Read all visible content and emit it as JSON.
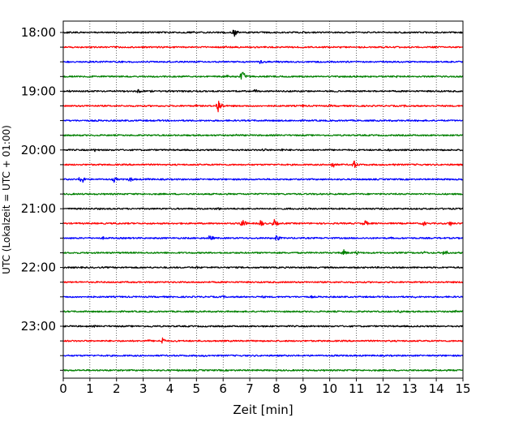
{
  "chart_data": {
    "type": "line",
    "xlabel": "Zeit  [min]",
    "ylabel": "UTC (Lokalzeit = UTC + 01:00)",
    "xlim": [
      0,
      15
    ],
    "x_ticks": [
      0,
      1,
      2,
      3,
      4,
      5,
      6,
      7,
      8,
      9,
      10,
      11,
      12,
      13,
      14,
      15
    ],
    "y_tick_labels": [
      "18:00",
      "19:00",
      "20:00",
      "21:00",
      "22:00",
      "23:00"
    ],
    "trace_interval_minutes": 15,
    "start_time": "18:00",
    "grid": "vertical dotted",
    "colors": [
      "#000000",
      "#ff0000",
      "#0000ff",
      "#008000"
    ],
    "traces": [
      {
        "start": "18:00",
        "color": "#000000",
        "events": [
          {
            "x": 6.4,
            "amp": 6
          },
          {
            "x": 4.9,
            "amp": 1.5
          },
          {
            "x": 6.0,
            "amp": 1.5
          },
          {
            "x": 9.0,
            "amp": 1.5
          }
        ]
      },
      {
        "start": "18:15",
        "color": "#ff0000",
        "events": [
          {
            "x": 1.1,
            "amp": 2
          },
          {
            "x": 6.1,
            "amp": 1.5
          }
        ]
      },
      {
        "start": "18:30",
        "color": "#0000ff",
        "events": [
          {
            "x": 7.4,
            "amp": 3
          },
          {
            "x": 2.2,
            "amp": 1.5
          }
        ]
      },
      {
        "start": "18:45",
        "color": "#008000",
        "events": [
          {
            "x": 6.7,
            "amp": 9
          },
          {
            "x": 6.15,
            "amp": 2
          },
          {
            "x": 7.0,
            "amp": 2
          },
          {
            "x": 10.3,
            "amp": 1.5
          },
          {
            "x": 12.5,
            "amp": 1.5
          }
        ]
      },
      {
        "start": "19:00",
        "color": "#000000",
        "events": [
          {
            "x": 0.2,
            "amp": 2
          },
          {
            "x": 2.8,
            "amp": 3
          },
          {
            "x": 7.2,
            "amp": 3
          },
          {
            "x": 3.3,
            "amp": 1.5
          },
          {
            "x": 5.6,
            "amp": 1.5
          }
        ]
      },
      {
        "start": "19:15",
        "color": "#ff0000",
        "events": [
          {
            "x": 5.8,
            "amp": 11
          },
          {
            "x": 5.0,
            "amp": 2
          },
          {
            "x": 9.0,
            "amp": 2
          },
          {
            "x": 10.0,
            "amp": 2
          },
          {
            "x": 12.8,
            "amp": 1.5
          }
        ]
      },
      {
        "start": "19:30",
        "color": "#0000ff",
        "events": [
          {
            "x": 1.3,
            "amp": 1.5
          },
          {
            "x": 7.0,
            "amp": 1.5
          }
        ]
      },
      {
        "start": "19:45",
        "color": "#008000",
        "events": [
          {
            "x": 6.5,
            "amp": 2
          },
          {
            "x": 8.0,
            "amp": 1.5
          }
        ]
      },
      {
        "start": "20:00",
        "color": "#000000",
        "events": [
          {
            "x": 1.2,
            "amp": 3
          },
          {
            "x": 7.5,
            "amp": 3
          },
          {
            "x": 8.2,
            "amp": 2
          },
          {
            "x": 12.2,
            "amp": 2
          },
          {
            "x": 14.2,
            "amp": 1.5
          }
        ]
      },
      {
        "start": "20:15",
        "color": "#ff0000",
        "events": [
          {
            "x": 10.1,
            "amp": 5
          },
          {
            "x": 10.9,
            "amp": 6
          },
          {
            "x": 3.0,
            "amp": 1.5
          },
          {
            "x": 12.4,
            "amp": 2
          },
          {
            "x": 13.3,
            "amp": 1.5
          }
        ]
      },
      {
        "start": "20:30",
        "color": "#0000ff",
        "events": [
          {
            "x": 0.65,
            "amp": 8
          },
          {
            "x": 1.9,
            "amp": 4
          },
          {
            "x": 2.5,
            "amp": 4
          },
          {
            "x": 3.2,
            "amp": 2
          }
        ]
      },
      {
        "start": "20:45",
        "color": "#008000",
        "events": [
          {
            "x": 3.0,
            "amp": 1.5
          },
          {
            "x": 9.5,
            "amp": 1.5
          }
        ]
      },
      {
        "start": "21:00",
        "color": "#000000",
        "events": [
          {
            "x": 5.8,
            "amp": 2.5
          },
          {
            "x": 1.3,
            "amp": 1.5
          },
          {
            "x": 8.5,
            "amp": 1.5
          }
        ]
      },
      {
        "start": "21:15",
        "color": "#ff0000",
        "events": [
          {
            "x": 6.7,
            "amp": 8
          },
          {
            "x": 7.4,
            "amp": 5
          },
          {
            "x": 7.9,
            "amp": 6
          },
          {
            "x": 11.3,
            "amp": 5
          },
          {
            "x": 13.5,
            "amp": 4
          },
          {
            "x": 14.5,
            "amp": 4
          },
          {
            "x": 2.0,
            "amp": 2
          }
        ]
      },
      {
        "start": "21:30",
        "color": "#0000ff",
        "events": [
          {
            "x": 5.5,
            "amp": 5
          },
          {
            "x": 8.0,
            "amp": 5
          },
          {
            "x": 1.5,
            "amp": 2
          },
          {
            "x": 12.3,
            "amp": 1.5
          }
        ]
      },
      {
        "start": "21:45",
        "color": "#008000",
        "events": [
          {
            "x": 10.5,
            "amp": 5
          },
          {
            "x": 11.0,
            "amp": 3
          },
          {
            "x": 13.5,
            "amp": 3
          },
          {
            "x": 14.3,
            "amp": 5
          }
        ]
      },
      {
        "start": "22:00",
        "color": "#000000",
        "events": [
          {
            "x": 5.0,
            "amp": 2
          },
          {
            "x": 1.2,
            "amp": 1.5
          }
        ]
      },
      {
        "start": "22:15",
        "color": "#ff0000",
        "events": [
          {
            "x": 4.0,
            "amp": 1
          }
        ]
      },
      {
        "start": "22:30",
        "color": "#0000ff",
        "events": [
          {
            "x": 6.0,
            "amp": 2
          },
          {
            "x": 7.5,
            "amp": 2
          },
          {
            "x": 9.3,
            "amp": 2
          },
          {
            "x": 13.2,
            "amp": 1.5
          }
        ]
      },
      {
        "start": "22:45",
        "color": "#008000",
        "events": [
          {
            "x": 12.6,
            "amp": 3
          },
          {
            "x": 14.7,
            "amp": 3
          },
          {
            "x": 6.0,
            "amp": 1.5
          }
        ]
      },
      {
        "start": "23:00",
        "color": "#000000",
        "events": [
          {
            "x": 1.2,
            "amp": 2
          },
          {
            "x": 2.9,
            "amp": 2
          },
          {
            "x": 3.3,
            "amp": 1.5
          }
        ]
      },
      {
        "start": "23:15",
        "color": "#ff0000",
        "events": [
          {
            "x": 3.7,
            "amp": 6
          },
          {
            "x": 3.2,
            "amp": 2
          },
          {
            "x": 4.2,
            "amp": 1.5
          }
        ]
      },
      {
        "start": "23:30",
        "color": "#0000ff",
        "events": [
          {
            "x": 5.3,
            "amp": 2
          },
          {
            "x": 10.2,
            "amp": 1.5
          }
        ]
      },
      {
        "start": "23:45",
        "color": "#008000",
        "events": [
          {
            "x": 4.3,
            "amp": 1.5
          },
          {
            "x": 13.0,
            "amp": 1.5
          }
        ]
      }
    ]
  }
}
